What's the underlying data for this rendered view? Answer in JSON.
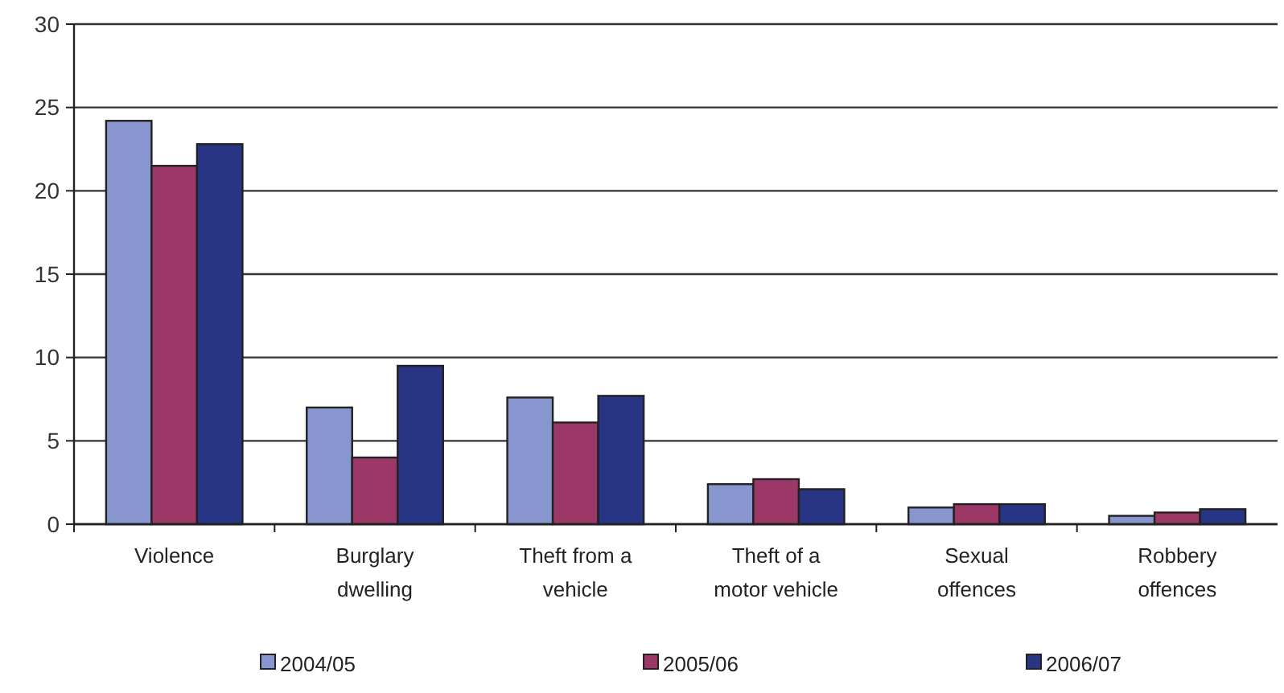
{
  "chart_data": {
    "type": "bar",
    "categories": [
      "Violence",
      "Burglary dwelling",
      "Theft from a vehicle",
      "Theft of a motor vehicle",
      "Sexual offences",
      "Robbery offences"
    ],
    "series": [
      {
        "name": "2004/05",
        "color": "#8896d0",
        "values": [
          24.2,
          7.0,
          7.6,
          2.4,
          1.0,
          0.5
        ]
      },
      {
        "name": "2005/06",
        "color": "#9c3868",
        "values": [
          21.5,
          4.0,
          6.1,
          2.7,
          1.2,
          0.7
        ]
      },
      {
        "name": "2006/07",
        "color": "#283484",
        "values": [
          22.8,
          9.5,
          7.7,
          2.1,
          1.2,
          0.9
        ]
      }
    ],
    "ylim": [
      0,
      30
    ],
    "yticks": [
      0,
      5,
      10,
      15,
      20,
      25,
      30
    ],
    "grid": "y",
    "legend": "bottom"
  }
}
